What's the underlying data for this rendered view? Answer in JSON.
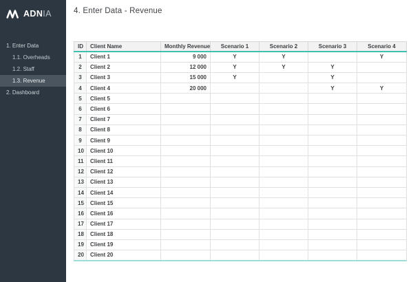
{
  "colors": {
    "sidebar_bg": "#2c3741",
    "sidebar_active_bg": "#4a5560",
    "accent_teal": "#3fbfb2",
    "accent_teal_light": "#9edcd6",
    "header_bg": "#f2f2f2",
    "grid_border": "#e0e0e0",
    "text_dark": "#3d4043"
  },
  "logo": {
    "brand_bold": "ADN",
    "brand_light": "IA"
  },
  "sidebar": {
    "items": [
      {
        "label": "1. Enter Data",
        "level": 1,
        "active": false
      },
      {
        "label": "1.1. Overheads",
        "level": 2,
        "active": false
      },
      {
        "label": "1.2. Staff",
        "level": 2,
        "active": false
      },
      {
        "label": "1.3. Revenue",
        "level": 2,
        "active": true
      },
      {
        "label": "2. Dashboard",
        "level": 1,
        "active": false
      }
    ]
  },
  "main": {
    "title": "4. Enter Data - Revenue"
  },
  "table": {
    "columns": [
      "ID",
      "Client Name",
      "Monthly Revenue",
      "Scenario 1",
      "Scenario 2",
      "Scenario 3",
      "Scenario 4"
    ],
    "rows": [
      {
        "id": "1",
        "client": "Client 1",
        "revenue": "9 000",
        "scenarios": [
          "Y",
          "Y",
          "",
          "Y"
        ]
      },
      {
        "id": "2",
        "client": "Client 2",
        "revenue": "12 000",
        "scenarios": [
          "Y",
          "Y",
          "Y",
          ""
        ]
      },
      {
        "id": "3",
        "client": "Client 3",
        "revenue": "15 000",
        "scenarios": [
          "Y",
          "",
          "Y",
          ""
        ]
      },
      {
        "id": "4",
        "client": "Client 4",
        "revenue": "20 000",
        "scenarios": [
          "",
          "",
          "Y",
          "Y"
        ]
      },
      {
        "id": "5",
        "client": "Client 5",
        "revenue": "",
        "scenarios": [
          "",
          "",
          "",
          ""
        ]
      },
      {
        "id": "6",
        "client": "Client 6",
        "revenue": "",
        "scenarios": [
          "",
          "",
          "",
          ""
        ]
      },
      {
        "id": "7",
        "client": "Client 7",
        "revenue": "",
        "scenarios": [
          "",
          "",
          "",
          ""
        ]
      },
      {
        "id": "8",
        "client": "Client 8",
        "revenue": "",
        "scenarios": [
          "",
          "",
          "",
          ""
        ]
      },
      {
        "id": "9",
        "client": "Client 9",
        "revenue": "",
        "scenarios": [
          "",
          "",
          "",
          ""
        ]
      },
      {
        "id": "10",
        "client": "Client 10",
        "revenue": "",
        "scenarios": [
          "",
          "",
          "",
          ""
        ]
      },
      {
        "id": "11",
        "client": "Client 11",
        "revenue": "",
        "scenarios": [
          "",
          "",
          "",
          ""
        ]
      },
      {
        "id": "12",
        "client": "Client 12",
        "revenue": "",
        "scenarios": [
          "",
          "",
          "",
          ""
        ]
      },
      {
        "id": "13",
        "client": "Client 13",
        "revenue": "",
        "scenarios": [
          "",
          "",
          "",
          ""
        ]
      },
      {
        "id": "14",
        "client": "Client 14",
        "revenue": "",
        "scenarios": [
          "",
          "",
          "",
          ""
        ]
      },
      {
        "id": "15",
        "client": "Client 15",
        "revenue": "",
        "scenarios": [
          "",
          "",
          "",
          ""
        ]
      },
      {
        "id": "16",
        "client": "Client 16",
        "revenue": "",
        "scenarios": [
          "",
          "",
          "",
          ""
        ]
      },
      {
        "id": "17",
        "client": "Client 17",
        "revenue": "",
        "scenarios": [
          "",
          "",
          "",
          ""
        ]
      },
      {
        "id": "18",
        "client": "Client 18",
        "revenue": "",
        "scenarios": [
          "",
          "",
          "",
          ""
        ]
      },
      {
        "id": "19",
        "client": "Client 19",
        "revenue": "",
        "scenarios": [
          "",
          "",
          "",
          ""
        ]
      },
      {
        "id": "20",
        "client": "Client 20",
        "revenue": "",
        "scenarios": [
          "",
          "",
          "",
          ""
        ]
      }
    ]
  }
}
